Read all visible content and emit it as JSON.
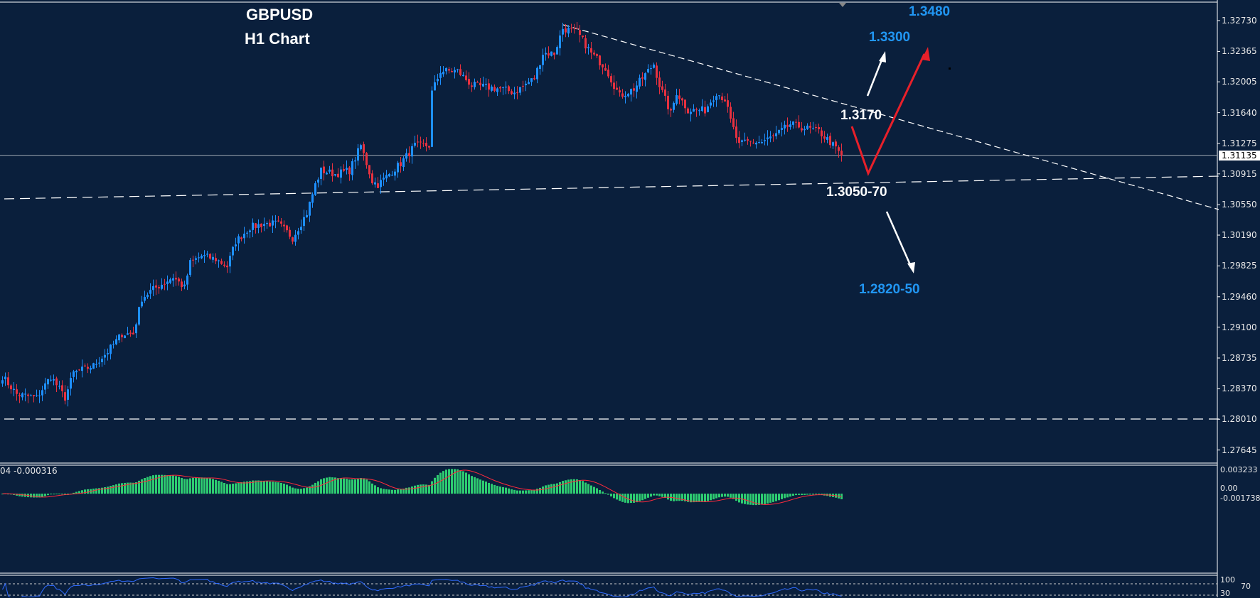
{
  "chart_data": {
    "type": "candlestick",
    "symbol": "GBPUSD",
    "timeframe_label": "H1 Chart",
    "ylim": [
      1.27499,
      1.32974
    ],
    "y_ticks": [
      "1.32730",
      "1.32365",
      "1.32005",
      "1.31640",
      "1.31275",
      "1.30915",
      "1.30550",
      "1.30190",
      "1.29825",
      "1.29460",
      "1.29100",
      "1.28735",
      "1.28370",
      "1.28010",
      "1.27645"
    ],
    "current_price": "1.31135",
    "close_path": [
      [
        0,
        1.28517
      ],
      [
        5,
        1.28306
      ],
      [
        12,
        1.28264
      ],
      [
        17,
        1.28517
      ],
      [
        22,
        1.28264
      ],
      [
        25,
        1.28559
      ],
      [
        32,
        1.28643
      ],
      [
        37,
        1.28811
      ],
      [
        42,
        1.29021
      ],
      [
        46,
        1.29021
      ],
      [
        49,
        1.29442
      ],
      [
        52,
        1.29526
      ],
      [
        60,
        1.29694
      ],
      [
        64,
        1.29568
      ],
      [
        66,
        1.29862
      ],
      [
        70,
        1.29946
      ],
      [
        75,
        1.29904
      ],
      [
        79,
        1.2982
      ],
      [
        82,
        1.30114
      ],
      [
        87,
        1.30283
      ],
      [
        92,
        1.30325
      ],
      [
        97,
        1.30325
      ],
      [
        102,
        1.30157
      ],
      [
        107,
        1.30451
      ],
      [
        110,
        1.30787
      ],
      [
        112,
        1.30955
      ],
      [
        117,
        1.30913
      ],
      [
        122,
        1.30955
      ],
      [
        126,
        1.3125
      ],
      [
        130,
        1.3083
      ],
      [
        132,
        1.30787
      ],
      [
        140,
        1.3104
      ],
      [
        145,
        1.3125
      ],
      [
        150,
        1.3125
      ],
      [
        151,
        1.31881
      ],
      [
        154,
        1.32133
      ],
      [
        160,
        1.32133
      ],
      [
        165,
        1.31965
      ],
      [
        175,
        1.31923
      ],
      [
        180,
        1.31881
      ],
      [
        187,
        1.32049
      ],
      [
        190,
        1.32343
      ],
      [
        194,
        1.32343
      ],
      [
        197,
        1.32637
      ],
      [
        202,
        1.32595
      ],
      [
        207,
        1.32343
      ],
      [
        212,
        1.32175
      ],
      [
        215,
        1.31965
      ],
      [
        217,
        1.31839
      ],
      [
        222,
        1.31923
      ],
      [
        229,
        1.32217
      ],
      [
        231,
        1.31965
      ],
      [
        235,
        1.31628
      ],
      [
        237,
        1.31881
      ],
      [
        241,
        1.3167
      ],
      [
        247,
        1.3167
      ],
      [
        251,
        1.31881
      ],
      [
        254,
        1.31797
      ],
      [
        256,
        1.31544
      ],
      [
        259,
        1.3125
      ],
      [
        261,
        1.31292
      ],
      [
        267,
        1.31292
      ],
      [
        272,
        1.31376
      ],
      [
        277,
        1.31502
      ],
      [
        282,
        1.3146
      ],
      [
        287,
        1.31418
      ],
      [
        291,
        1.31292
      ],
      [
        295,
        1.31135
      ]
    ],
    "trendlines": [
      {
        "name": "descending-resistance",
        "points": [
          [
            197.5,
            1.3268
          ],
          [
            428,
            1.30493
          ]
        ]
      },
      {
        "name": "rising-support",
        "points": [
          [
            1,
            1.30619
          ],
          [
            428,
            1.30888
          ]
        ]
      },
      {
        "name": "support-low",
        "points": [
          [
            1,
            1.28012
          ],
          [
            428,
            1.28012
          ]
        ]
      }
    ],
    "annotations": {
      "title": "GBPUSD",
      "subtitle": "H1 Chart",
      "target_high": "1.3480",
      "target_mid": "1.3300",
      "resistance": "1.3170",
      "support": "1.3050-70",
      "target_low": "1.2820-50"
    },
    "macd": {
      "legend": "04 -0.000316",
      "ticks": [
        "0.003233",
        "0.00",
        "-0.001738"
      ],
      "histogram_color": "#2ecc71",
      "signal_color": "#ff2a3c"
    },
    "rsi": {
      "ticks": [
        "100",
        "70",
        "30"
      ],
      "line_color": "#2f6bff"
    },
    "colors": {
      "background": "#0a1f3c",
      "up_candle": "#1e90ff",
      "down_candle": "#e8313f",
      "projection_arrow": "#e8202a"
    }
  }
}
